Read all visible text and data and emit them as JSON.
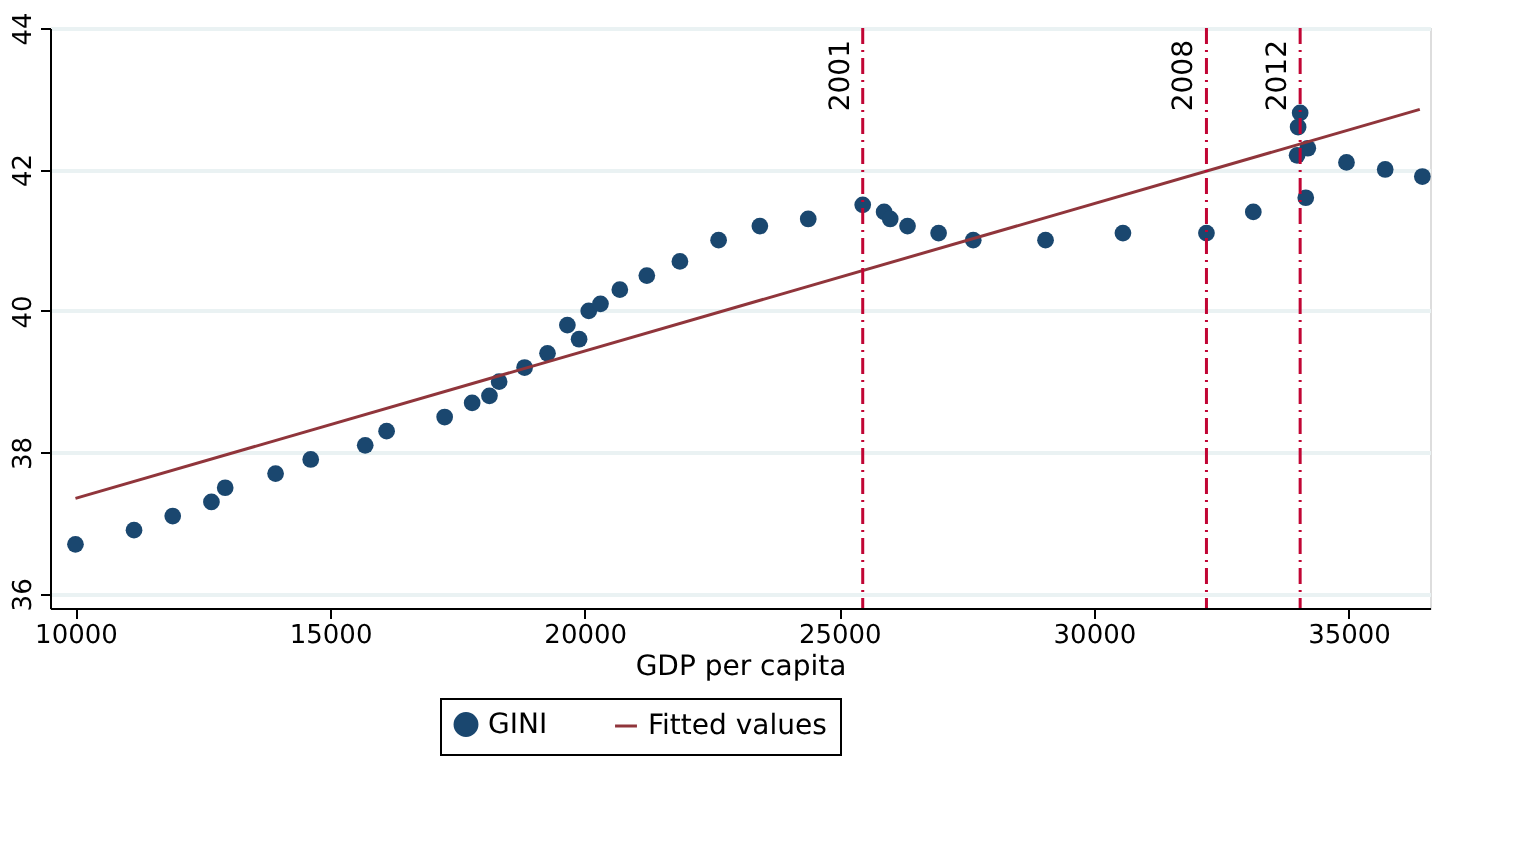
{
  "chart_data": {
    "type": "scatter",
    "xlabel": "GDP per capita",
    "xlim": [
      9500,
      36600
    ],
    "xticks": [
      10000,
      15000,
      20000,
      25000,
      30000,
      35000
    ],
    "ylim": [
      35.8,
      44
    ],
    "yticks": [
      36,
      38,
      40,
      42,
      44
    ],
    "grid": "y",
    "legend": "bottom",
    "series": [
      {
        "name": "GINI",
        "marker": "circle",
        "color": "#1a476f",
        "x": [
          10000,
          11150,
          11910,
          12670,
          12940,
          13930,
          14620,
          15690,
          16110,
          17250,
          17790,
          18130,
          18320,
          18820,
          19270,
          19660,
          19890,
          20080,
          20310,
          20690,
          21220,
          21870,
          22630,
          23440,
          24390,
          25460,
          25880,
          26000,
          26340,
          26950,
          27630,
          29050,
          30570,
          32210,
          33130,
          34010,
          34050,
          33990,
          34200,
          34160,
          34960,
          35720,
          36450
        ],
        "values": [
          36.7,
          36.9,
          37.1,
          37.3,
          37.5,
          37.7,
          37.9,
          38.1,
          38.3,
          38.5,
          38.7,
          38.8,
          39.0,
          39.2,
          39.4,
          39.8,
          39.6,
          40.0,
          40.1,
          40.3,
          40.5,
          40.7,
          41.0,
          41.2,
          41.3,
          41.5,
          41.4,
          41.3,
          41.2,
          41.1,
          41.0,
          41.0,
          41.1,
          41.1,
          41.4,
          42.6,
          42.8,
          42.2,
          42.3,
          41.6,
          42.1,
          42.0,
          41.9
        ]
      },
      {
        "name": "Fitted values",
        "type": "line",
        "marker": "none",
        "color": "#90353b",
        "x": [
          10000,
          36400
        ],
        "values": [
          37.35,
          42.85
        ]
      }
    ],
    "ref_lines": [
      {
        "axis": "x",
        "value": 25460,
        "color": "#c10534",
        "line_style": "dashdot"
      },
      {
        "axis": "x",
        "value": 32210,
        "color": "#c10534",
        "line_style": "dashdot"
      },
      {
        "axis": "x",
        "value": 34050,
        "color": "#c10534",
        "line_style": "dashdot"
      }
    ],
    "annotations": [
      {
        "text": "2001",
        "x": 25460
      },
      {
        "text": "2008",
        "x": 32210
      },
      {
        "text": "2012",
        "x": 34050
      }
    ]
  }
}
